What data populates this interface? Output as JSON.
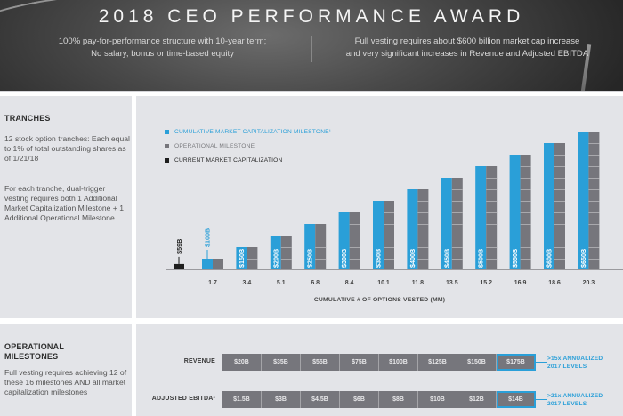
{
  "header": {
    "title": "2018 CEO PERFORMANCE AWARD",
    "left_line1": "100% pay-for-performance structure with 10-year term;",
    "left_line2": "No salary, bonus or time-based equity",
    "right_line1": "Full vesting requires about $600 billion market cap increase",
    "right_line2": "and very significant increases in Revenue and Adjusted EBITDA"
  },
  "tranches": {
    "heading": "TRANCHES",
    "para1": "12 stock option tranches: Each equal to 1% of total outstanding shares as of 1/21/18",
    "para2": "For each tranche, dual-trigger vesting requires both 1 Additional Market Capitalization Milestone + 1 Additional Operational Milestone"
  },
  "operational": {
    "heading_line1": "OPERATIONAL",
    "heading_line2": "MILESTONES",
    "para": "Full vesting requires achieving 12 of these 16 milestones AND all market capitalization milestones",
    "rows": [
      {
        "label": "REVENUE",
        "values": [
          "$20B",
          "$35B",
          "$55B",
          "$75B",
          "$100B",
          "$125B",
          "$150B",
          "$175B"
        ],
        "highlight_index": 7,
        "note_line1": ">15x ANNUALIZED",
        "note_line2": "2017 LEVELS"
      },
      {
        "label": "ADJUSTED EBITDA²",
        "values": [
          "$1.5B",
          "$3B",
          "$4.5B",
          "$6B",
          "$8B",
          "$10B",
          "$12B",
          "$14B"
        ],
        "highlight_index": 7,
        "note_line1": ">21x ANNUALIZED",
        "note_line2": "2017 LEVELS"
      }
    ]
  },
  "colors": {
    "market_cap_blue": "#2a9fd8",
    "operational_gray": "#76767c",
    "current_black": "#1e1e1e"
  },
  "chart_data": {
    "type": "bar",
    "title": "",
    "xlabel": "CUMULATIVE # OF OPTIONS VESTED (MM)",
    "ylabel": "",
    "legend": [
      {
        "name": "CUMULATIVE MARKET CAPITALIZATION MILESTONE¹",
        "color": "#2a9fd8"
      },
      {
        "name": "OPERATIONAL MILESTONE",
        "color": "#76767c"
      },
      {
        "name": "CURRENT MARKET CAPITALIZATION",
        "color": "#1e1e1e"
      }
    ],
    "legend_position": "top-left",
    "current_market_cap": {
      "value": 59,
      "label": "$59B"
    },
    "categories": [
      "1.7",
      "3.4",
      "5.1",
      "6.8",
      "8.4",
      "10.1",
      "11.8",
      "13.5",
      "15.2",
      "16.9",
      "18.6",
      "20.3"
    ],
    "series": [
      {
        "name": "Cumulative Market Capitalization Milestone ($B)",
        "values": [
          100,
          150,
          200,
          250,
          300,
          350,
          400,
          450,
          500,
          550,
          600,
          650
        ],
        "labels": [
          "$100B",
          "$150B",
          "$200B",
          "$250B",
          "$300B",
          "$350B",
          "$400B",
          "$450B",
          "$500B",
          "$550B",
          "$600B",
          "$650B"
        ]
      },
      {
        "name": "Operational Milestones (cumulative count)",
        "values": [
          1,
          2,
          3,
          4,
          5,
          6,
          7,
          8,
          9,
          10,
          11,
          12
        ]
      }
    ],
    "grid": false
  }
}
